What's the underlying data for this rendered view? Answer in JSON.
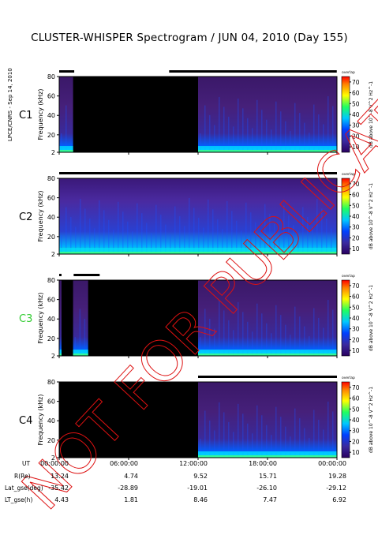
{
  "title": "CLUSTER-WHISPER Spectrogram / JUN 04, 2010 (Day 155)",
  "side_credit": "LPCE/CNRS - Sep 14, 2010",
  "watermark": "NOT FOR PUBLICATION",
  "panel_tag": "overlap",
  "colorbar": {
    "ticks": [
      10,
      20,
      30,
      40,
      50,
      60,
      70
    ],
    "label": "dB above 10^-8 V^2 Hz^-1"
  },
  "colors": {
    "background": "#000000",
    "spectrum_low": "#2a0060",
    "spectrum_mid": "#0040ff",
    "spectrum_high": "#00ffff",
    "c3_label": "#33cc33",
    "watermark": "#dd1111"
  },
  "chart_data": [
    {
      "type": "heatmap",
      "panel": "C1",
      "label_color": "#000000",
      "ylabel": "Frequency (kHz)",
      "yticks": [
        2,
        20,
        40,
        60,
        80
      ],
      "ylim": [
        2,
        80
      ],
      "xlim": [
        "00:00:00",
        "00:00:00"
      ],
      "coverage_bars": [
        [
          "00:00:00",
          "01:18:00"
        ],
        [
          "09:30:00",
          "23:59:00"
        ]
      ],
      "active_intervals": [
        [
          "00:00:00",
          "01:12:00"
        ],
        [
          "12:00:00",
          "24:00:00"
        ]
      ]
    },
    {
      "type": "heatmap",
      "panel": "C2",
      "label_color": "#000000",
      "ylabel": "Frequency (kHz)",
      "yticks": [
        2,
        20,
        40,
        60,
        80
      ],
      "ylim": [
        2,
        80
      ],
      "xlim": [
        "00:00:00",
        "00:00:00"
      ],
      "coverage_bars": [
        [
          "00:00:00",
          "24:00:00"
        ]
      ],
      "active_intervals": [
        [
          "00:00:00",
          "24:00:00"
        ]
      ]
    },
    {
      "type": "heatmap",
      "panel": "C3",
      "label_color": "#33cc33",
      "ylabel": "Frequency (kHz)",
      "yticks": [
        2,
        20,
        40,
        60,
        80
      ],
      "ylim": [
        2,
        80
      ],
      "xlim": [
        "00:00:00",
        "00:00:00"
      ],
      "coverage_bars": [
        [
          "00:00:00",
          "00:12:00"
        ],
        [
          "01:15:00",
          "03:30:00"
        ]
      ],
      "active_intervals": [
        [
          "00:00:00",
          "00:12:00"
        ],
        [
          "01:12:00",
          "02:30:00"
        ],
        [
          "12:00:00",
          "24:00:00"
        ]
      ]
    },
    {
      "type": "heatmap",
      "panel": "C4",
      "label_color": "#000000",
      "ylabel": "Frequency (kHz)",
      "yticks": [
        2,
        20,
        40,
        60,
        80
      ],
      "ylim": [
        2,
        80
      ],
      "xlim": [
        "00:00:00",
        "00:00:00"
      ],
      "coverage_bars": [
        [
          "12:00:00",
          "24:00:00"
        ]
      ],
      "active_intervals": [
        [
          "12:00:00",
          "24:00:00"
        ]
      ]
    }
  ],
  "ephemeris": {
    "ut": {
      "label": "UT",
      "values": [
        "00:00:00",
        "06:00:00",
        "12:00:00",
        "18:00:00",
        "00:00:00"
      ]
    },
    "r": {
      "label": "R(Re)",
      "values": [
        "13.24",
        "4.74",
        "9.52",
        "15.71",
        "19.28"
      ]
    },
    "lat": {
      "label": "Lat_gse(deg)",
      "values": [
        "-35.42",
        "-28.89",
        "-19.01",
        "-26.10",
        "-29.12"
      ]
    },
    "lt": {
      "label": "LT_gse(h)",
      "values": [
        "4.43",
        "1.81",
        "8.46",
        "7.47",
        "6.92"
      ]
    }
  }
}
